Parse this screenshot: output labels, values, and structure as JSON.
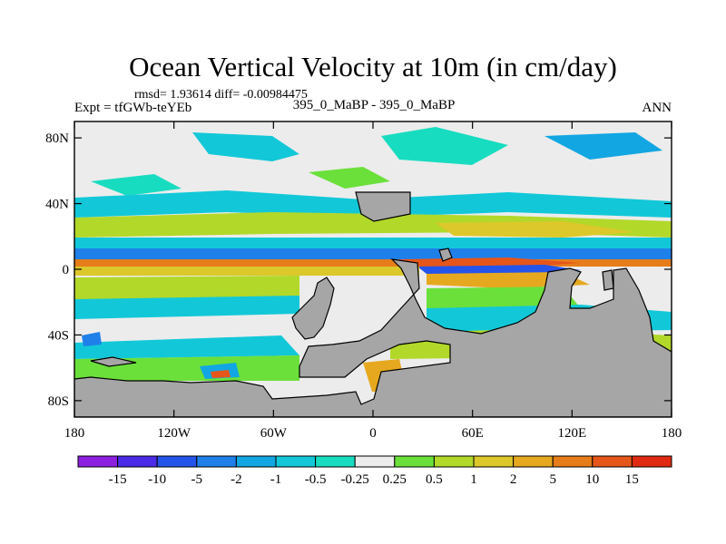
{
  "chart_data": {
    "type": "heatmap",
    "title": "Ocean Vertical Velocity at 10m (in cm/day)",
    "stats_line": "rmsd= 1.93614  diff= -0.00984475",
    "experiment_label": "Expt = tfGWb-teYEb",
    "comparison_label": "395_0_MaBP - 395_0_MaBP",
    "season_label": "ANN",
    "x_axis": {
      "range": [
        -180,
        180
      ],
      "ticks": [
        {
          "value": -180,
          "label": "180"
        },
        {
          "value": -120,
          "label": "120W"
        },
        {
          "value": -60,
          "label": "60W"
        },
        {
          "value": 0,
          "label": "0"
        },
        {
          "value": 60,
          "label": "60E"
        },
        {
          "value": 120,
          "label": "120E"
        },
        {
          "value": 180,
          "label": "180"
        }
      ]
    },
    "y_axis": {
      "range": [
        -90,
        90
      ],
      "ticks": [
        {
          "value": 80,
          "label": "80N"
        },
        {
          "value": 40,
          "label": "40N"
        },
        {
          "value": 0,
          "label": "0"
        },
        {
          "value": -40,
          "label": "40S"
        },
        {
          "value": -80,
          "label": "80S"
        }
      ]
    },
    "colorbar": {
      "levels": [
        "-15",
        "-10",
        "-5",
        "-2",
        "-1",
        "-0.5",
        "-0.25",
        "0.25",
        "0.5",
        "1",
        "2",
        "5",
        "10",
        "15"
      ],
      "colors": [
        "#8c1fe0",
        "#4b2be6",
        "#2554ea",
        "#1f80ea",
        "#12a6e2",
        "#12c8d8",
        "#18dcc0",
        "#ececec",
        "#6be03a",
        "#b2d82a",
        "#dcc82a",
        "#e6a81f",
        "#e67d1a",
        "#e6561a",
        "#e02b12"
      ]
    },
    "colors": {
      "land": "#a6a6a6",
      "no_change": "#ececec",
      "strong_up_band": "#e67d1a",
      "strong_down_band": "#2554ea"
    }
  }
}
